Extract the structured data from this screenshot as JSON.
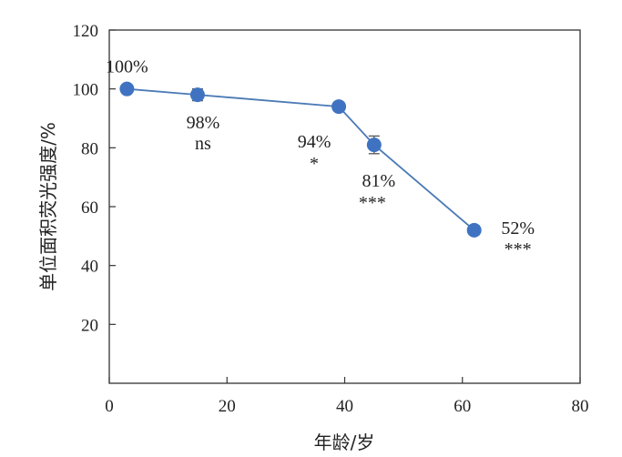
{
  "chart_data": {
    "type": "line",
    "xlabel": "年龄/岁",
    "ylabel": "单位面积荧光强度/%",
    "xlim": [
      0,
      80
    ],
    "ylim": [
      0,
      120
    ],
    "xticks": [
      0,
      20,
      40,
      60,
      80
    ],
    "yticks": [
      20,
      40,
      60,
      80,
      100,
      120
    ],
    "series": [
      {
        "x": [
          3,
          15,
          39,
          45,
          62
        ],
        "y": [
          100,
          98,
          94,
          81,
          52
        ],
        "error": [
          0,
          2,
          1.5,
          3,
          1.5
        ],
        "labels": [
          "100%",
          "98%",
          "94%",
          "81%",
          "52%"
        ],
        "significance": [
          "",
          "ns",
          "*",
          "***",
          "***"
        ]
      }
    ],
    "colors": {
      "line": "#4a7ab5",
      "marker": "#3f73c2",
      "errorbar": "#555555",
      "axis": "#333333"
    }
  }
}
